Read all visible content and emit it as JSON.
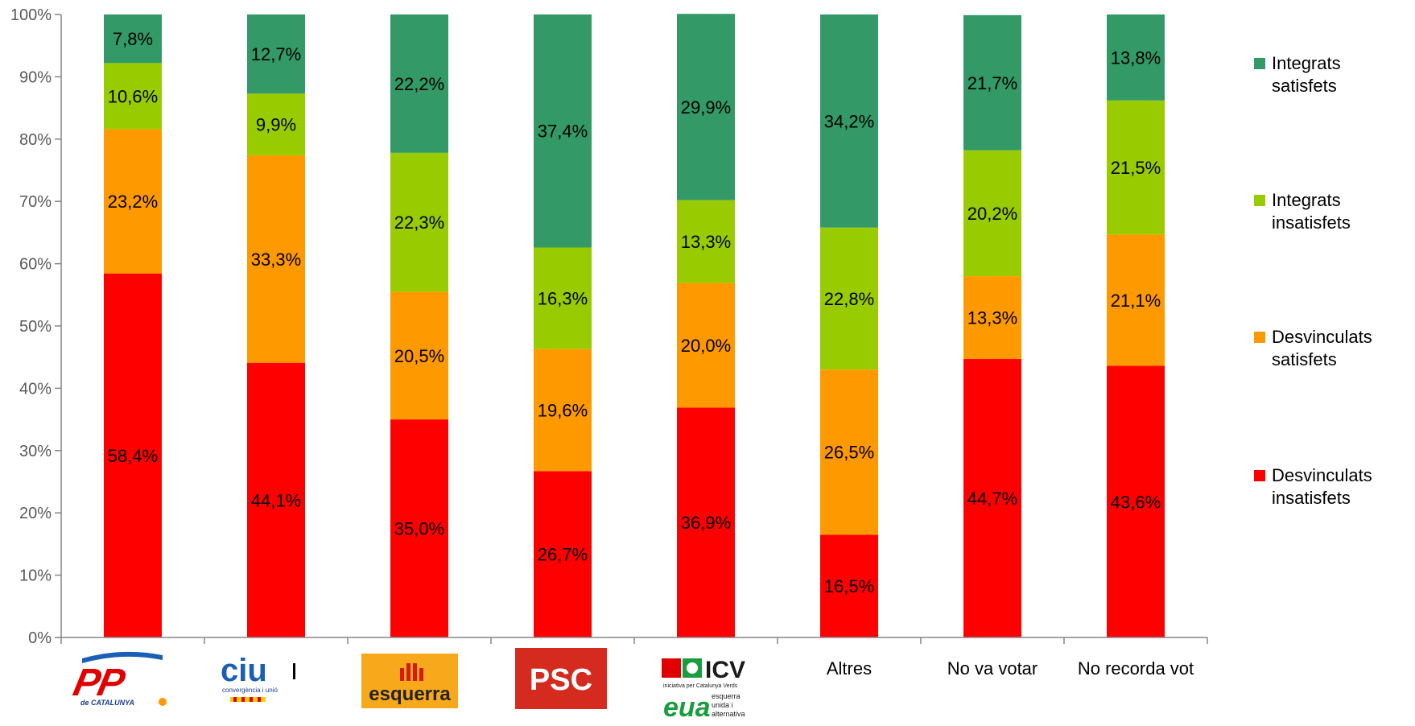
{
  "chart_data": {
    "type": "bar",
    "stacked": true,
    "categories": [
      "PP de Catalunya",
      "CiU convergència i unió",
      "esquerra",
      "PSC",
      "ICV EUiA",
      "Altres",
      "No va votar",
      "No recorda vot"
    ],
    "category_logos": [
      "pp-logo",
      "ciu-logo",
      "esquerra-logo",
      "psc-logo",
      "icv-euia-logo",
      null,
      null,
      null
    ],
    "category_labels": [
      "",
      "",
      "",
      "",
      "",
      "Altres",
      "No va votar",
      "No recorda vot"
    ],
    "series": [
      {
        "name": "Desvinculats insatisfets",
        "color": "#ff0000",
        "values": [
          58.4,
          44.1,
          35.0,
          26.7,
          36.9,
          16.5,
          44.7,
          43.6
        ]
      },
      {
        "name": "Desvinculats satisfets",
        "color": "#ff9900",
        "values": [
          23.2,
          33.3,
          20.5,
          19.6,
          20.0,
          26.5,
          13.3,
          21.1
        ]
      },
      {
        "name": "Integrats insatisfets",
        "color": "#99cc00",
        "values": [
          10.6,
          9.9,
          22.3,
          16.3,
          13.3,
          22.8,
          20.2,
          21.5
        ]
      },
      {
        "name": "Integrats satisfets",
        "color": "#339966",
        "values": [
          7.8,
          12.7,
          22.2,
          37.4,
          29.9,
          34.2,
          21.7,
          13.8
        ]
      }
    ],
    "data_labels": [
      [
        "58,4%",
        "44,1%",
        "35,0%",
        "26,7%",
        "36,9%",
        "16,5%",
        "44,7%",
        "43,6%"
      ],
      [
        "23,2%",
        "33,3%",
        "20,5%",
        "19,6%",
        "20,0%",
        "26,5%",
        "13,3%",
        "21,1%"
      ],
      [
        "10,6%",
        "9,9%",
        "22,3%",
        "16,3%",
        "13,3%",
        "22,8%",
        "20,2%",
        "21,5%"
      ],
      [
        "7,8%",
        "12,7%",
        "22,2%",
        "37,4%",
        "29,9%",
        "34,2%",
        "21,7%",
        "13,8%"
      ]
    ],
    "y_ticks": [
      "0%",
      "10%",
      "20%",
      "30%",
      "40%",
      "50%",
      "60%",
      "70%",
      "80%",
      "90%",
      "100%"
    ],
    "ylim": [
      0,
      100
    ],
    "legend": {
      "placement": "right",
      "entries": [
        {
          "line1": "Integrats",
          "line2": "satisfets",
          "color": "#339966"
        },
        {
          "line1": "Integrats",
          "line2": "insatisfets",
          "color": "#99cc00"
        },
        {
          "line1": "Desvinculats",
          "line2": "satisfets",
          "color": "#ff9900"
        },
        {
          "line1": "Desvinculats",
          "line2": "insatisfets",
          "color": "#ff0000"
        }
      ]
    },
    "grid": false
  },
  "logos": {
    "pp": {
      "main": "PP",
      "sub": "de CATALUNYA"
    },
    "ciu": {
      "main": "ciu",
      "sub": "convergència i unió"
    },
    "esquerra": {
      "main": "esquerra"
    },
    "psc": {
      "main": "PSC"
    },
    "icv": {
      "main": "ICV",
      "sub": "iniciativa per Catalunya Verds",
      "euia_main": "eua",
      "euia_sub1": "esquerra",
      "euia_sub2": "unida i",
      "euia_sub3": "alternativa"
    }
  }
}
